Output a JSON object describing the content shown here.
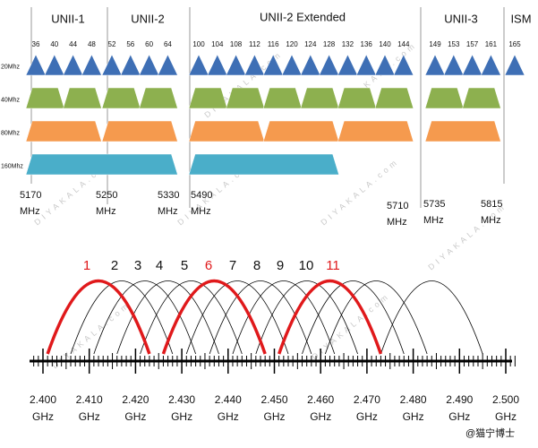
{
  "watermark": "DIYAKALA.com",
  "credit": "@猫宁博士",
  "bands": [
    {
      "name": "UNII-1",
      "channels": [
        36,
        40,
        44,
        48
      ]
    },
    {
      "name": "UNII-2",
      "channels": [
        52,
        56,
        60,
        64
      ]
    },
    {
      "name": "UNII-2 Extended",
      "channels": [
        100,
        104,
        108,
        112,
        116,
        120,
        124,
        128,
        132,
        136,
        140,
        144
      ]
    },
    {
      "name": "UNII-3",
      "channels": [
        149,
        153,
        157,
        161
      ]
    },
    {
      "name": "ISM",
      "channels": [
        165
      ]
    }
  ],
  "widths": [
    "20Mhz",
    "40Mhz",
    "80Mhz",
    "160Mhz"
  ],
  "frequency_unit_5ghz": "MHz",
  "frequencies_5ghz": [
    "5170",
    "5250",
    "5330",
    "5490",
    "5710",
    "5735",
    "5815"
  ],
  "channels_24ghz": [
    1,
    2,
    3,
    4,
    5,
    6,
    7,
    8,
    9,
    10,
    11
  ],
  "frequency_unit_24ghz": "GHz",
  "ticks_24ghz": [
    "2.400",
    "2.410",
    "2.420",
    "2.430",
    "2.440",
    "2.450",
    "2.460",
    "2.470",
    "2.480",
    "2.490",
    "2.500"
  ]
}
